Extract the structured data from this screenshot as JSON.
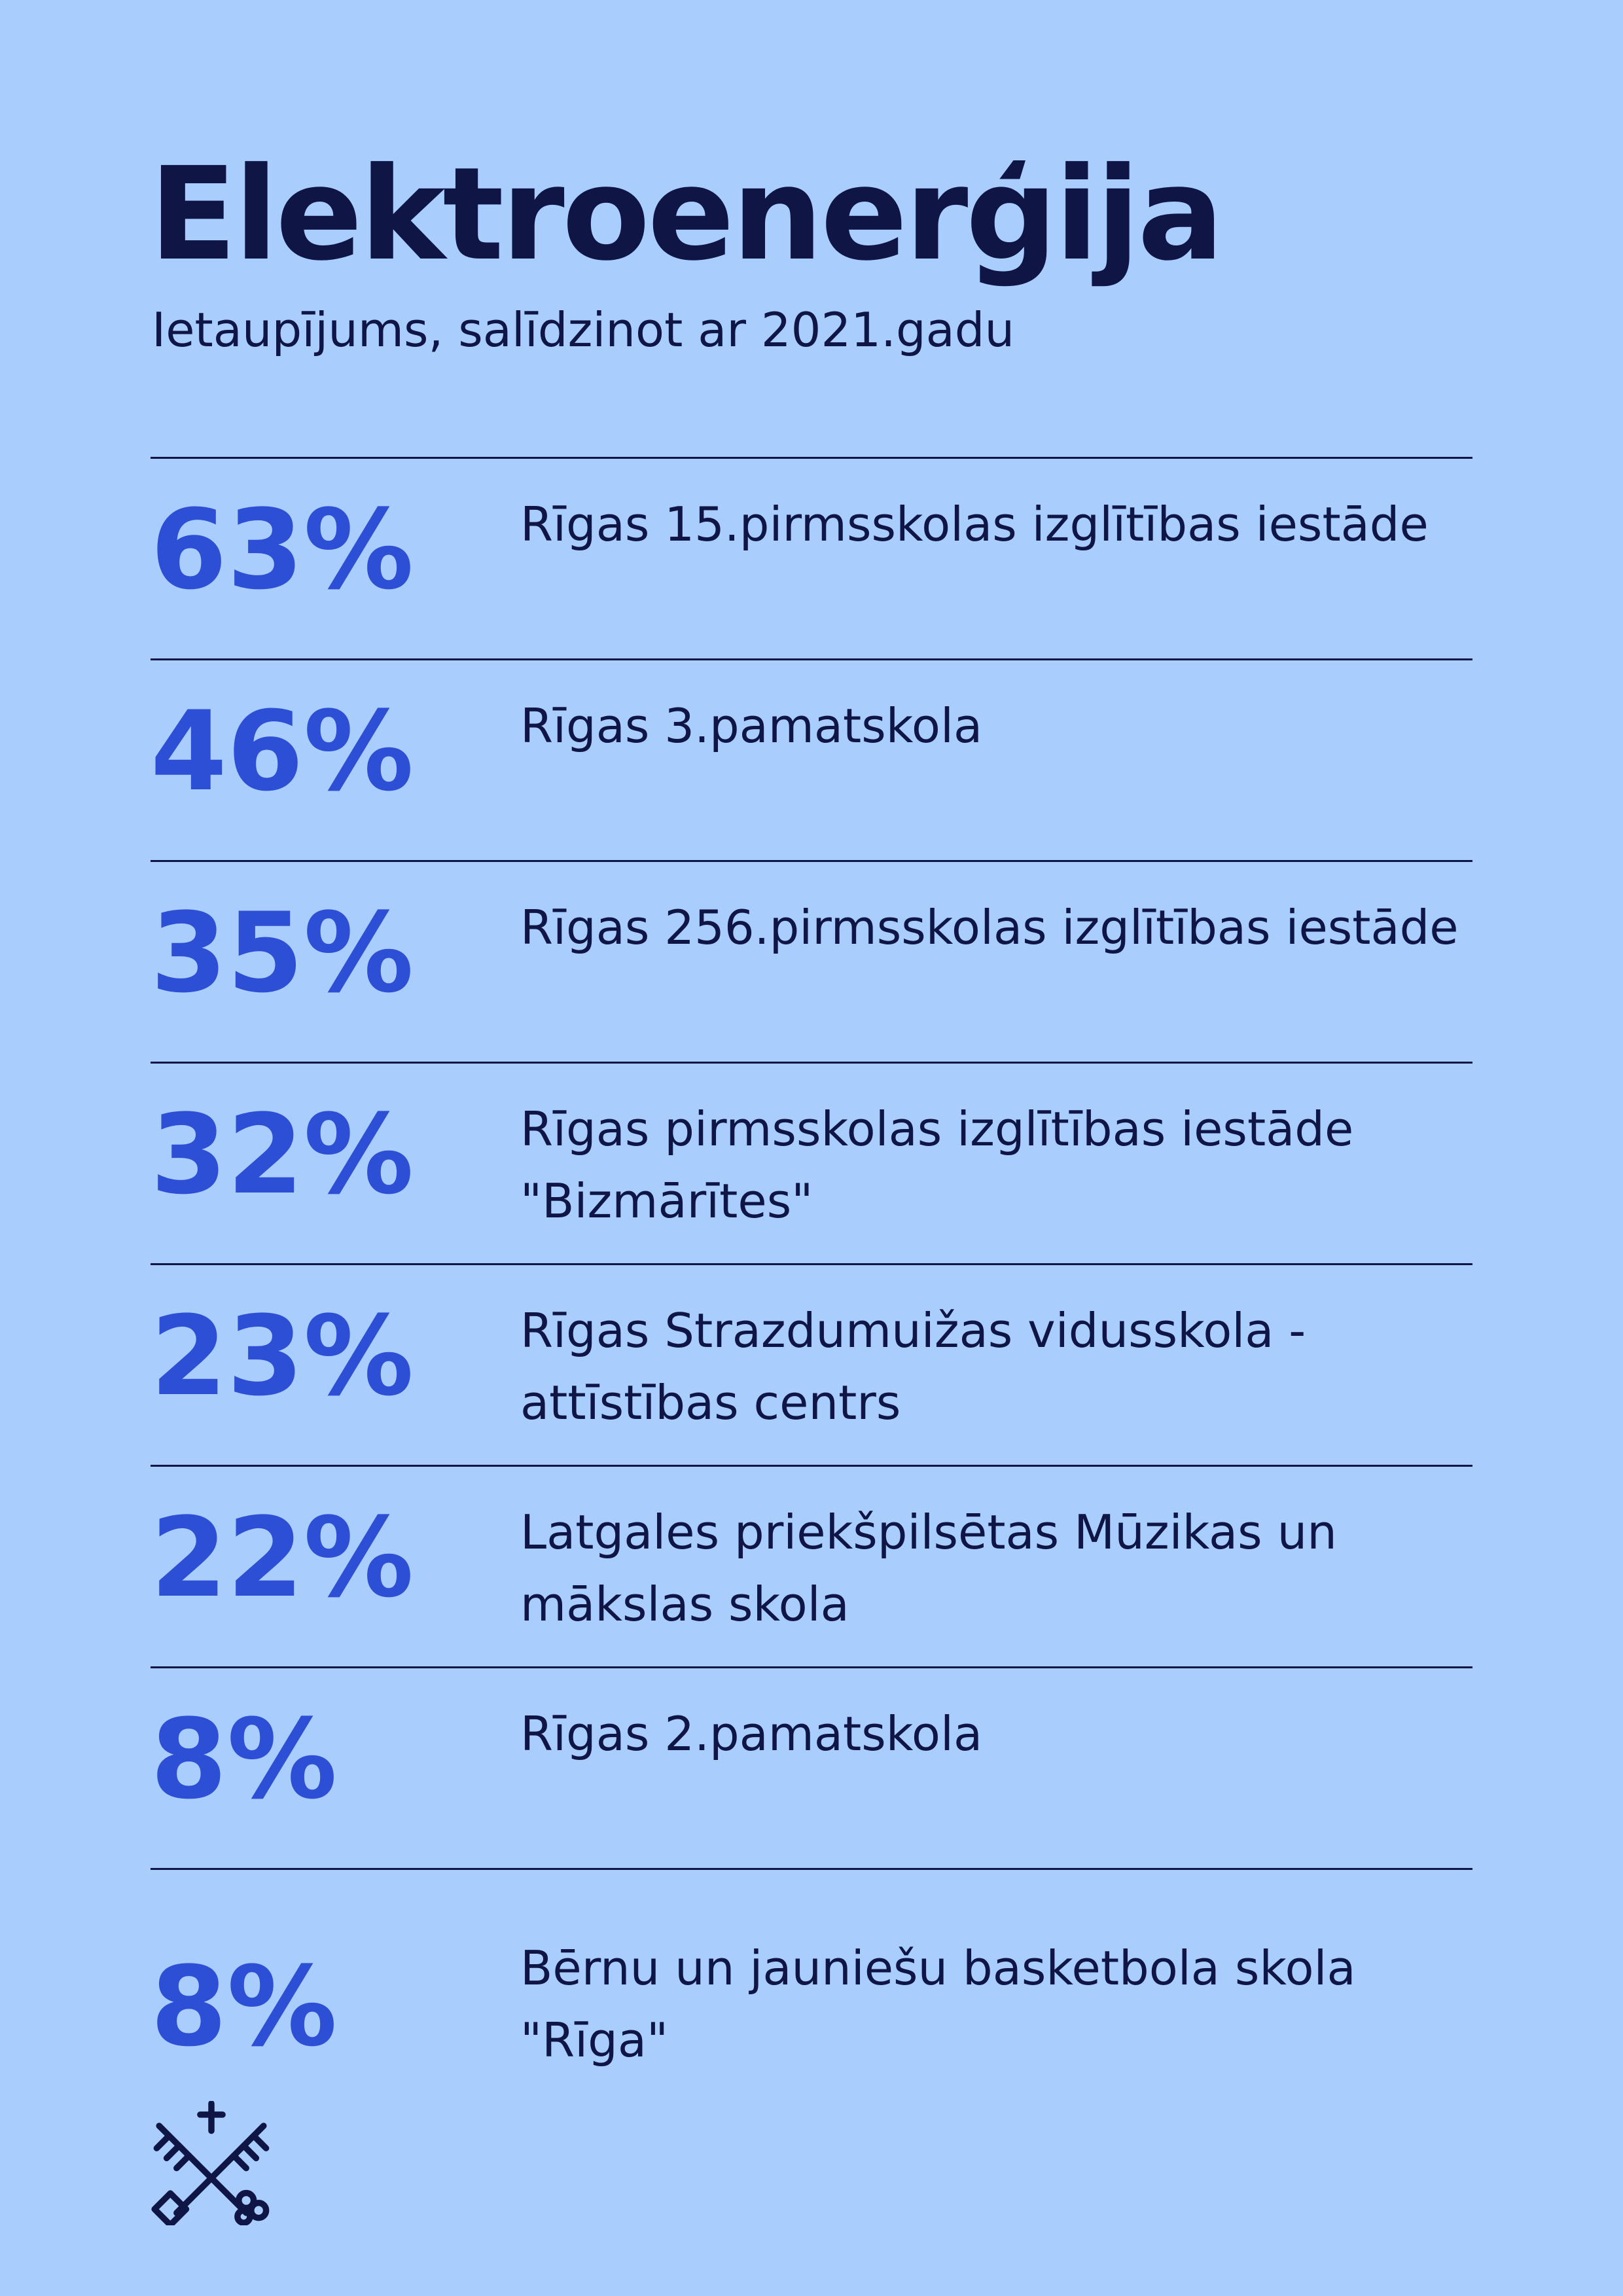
{
  "header": {
    "title": "Elektroenerģija",
    "subtitle": "Ietaupījums, salīdzinot ar 2021.gadu"
  },
  "items": [
    {
      "value": "63%",
      "label": "Rīgas 15.pirmsskolas izglītības iestāde"
    },
    {
      "value": "46%",
      "label": "Rīgas 3.pamatskola"
    },
    {
      "value": "35%",
      "label": "Rīgas 256.pirmsskolas izglītības iestāde"
    },
    {
      "value": "32%",
      "label": "Rīgas pirmsskolas izglītības iestāde \"Bizmārītes\""
    },
    {
      "value": "23%",
      "label": "Rīgas Strazdumuižas vidusskola - attīstības centrs"
    },
    {
      "value": "22%",
      "label": "Latgales priekšpilsētas Mūzikas un mākslas skola"
    },
    {
      "value": "8%",
      "label": "Rīgas 2.pamatskola"
    },
    {
      "value": "8%",
      "label": "Bērnu un jauniešu basketbola skola \"Rīga\""
    }
  ],
  "logo": {
    "icon": "crossed-keys-icon"
  },
  "colors": {
    "background": "#a9cdfd",
    "accent": "#2c4fd6",
    "text": "#0f1646"
  }
}
